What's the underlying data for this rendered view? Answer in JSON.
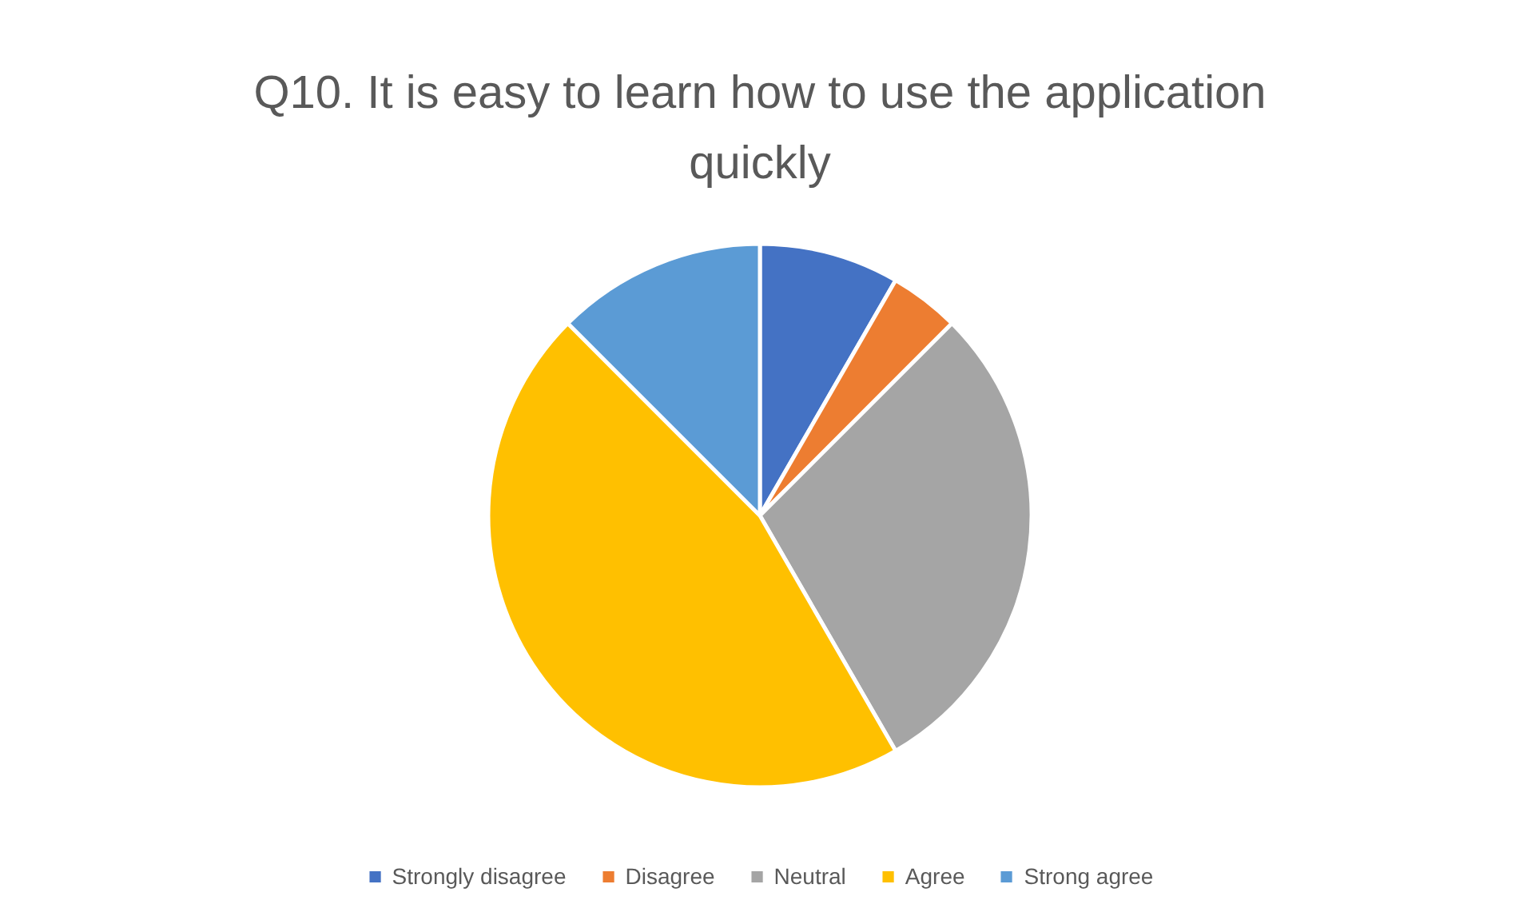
{
  "chart_data": {
    "type": "pie",
    "title": "Q10. It is easy to learn how to use the application quickly",
    "categories": [
      "Strongly disagree",
      "Disagree",
      "Neutral",
      "Agree",
      "Strong agree"
    ],
    "values": [
      8.33,
      4.17,
      29.17,
      45.83,
      12.5
    ],
    "colors": [
      "#4472c4",
      "#ed7d31",
      "#a5a5a5",
      "#ffc000",
      "#5b9bd5"
    ],
    "legend": "bottom"
  }
}
